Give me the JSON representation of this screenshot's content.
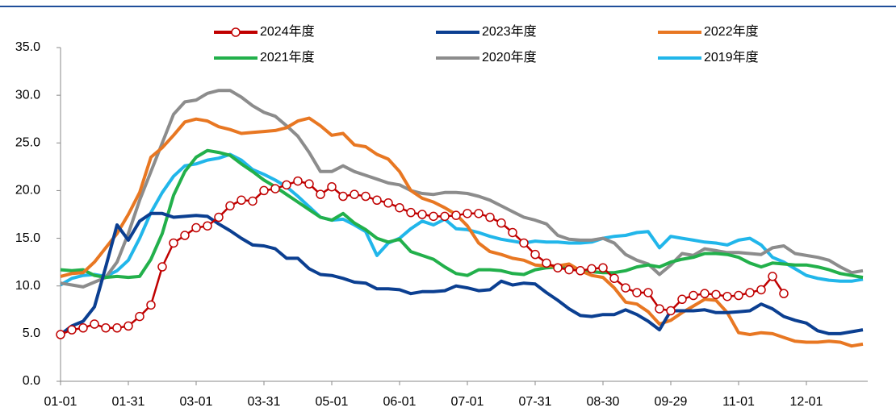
{
  "chart_data": {
    "type": "line",
    "categories": [
      "01-01",
      null,
      null,
      null,
      null,
      null,
      "01-31",
      null,
      null,
      null,
      null,
      null,
      "03-01",
      null,
      null,
      null,
      null,
      null,
      "03-31",
      null,
      null,
      null,
      null,
      null,
      "05-01",
      null,
      null,
      null,
      null,
      null,
      "06-01",
      null,
      null,
      null,
      null,
      null,
      "07-01",
      null,
      null,
      null,
      null,
      null,
      "07-31",
      null,
      null,
      null,
      null,
      null,
      "08-30",
      null,
      null,
      null,
      null,
      null,
      "09-29",
      null,
      null,
      null,
      null,
      null,
      "11-01",
      null,
      null,
      null,
      null,
      null,
      "12-01",
      null,
      null,
      null,
      null,
      null
    ],
    "ylim": [
      0,
      35
    ],
    "yticks": [
      {
        "value": 0,
        "label": "0.0"
      },
      {
        "value": 5,
        "label": "5.0"
      },
      {
        "value": 10,
        "label": "10.0"
      },
      {
        "value": 15,
        "label": "15.0"
      },
      {
        "value": 20,
        "label": "20.0"
      },
      {
        "value": 25,
        "label": "25.0"
      },
      {
        "value": 30,
        "label": "30.0"
      },
      {
        "value": 35,
        "label": "35.0"
      }
    ],
    "grid": false,
    "series": [
      {
        "name": "2024年度",
        "color": "#c00000",
        "marker": "circle",
        "values": [
          4.9,
          5.4,
          5.6,
          6.0,
          5.6,
          5.6,
          5.8,
          6.8,
          8.0,
          12.0,
          14.5,
          15.3,
          16.1,
          16.3,
          17.2,
          18.4,
          19.0,
          18.9,
          20.0,
          20.2,
          20.6,
          21.0,
          20.7,
          19.6,
          20.4,
          19.4,
          19.6,
          19.4,
          19.0,
          18.7,
          18.2,
          17.7,
          17.5,
          17.3,
          17.3,
          17.4,
          17.6,
          17.6,
          17.2,
          16.6,
          15.6,
          14.5,
          13.3,
          12.4,
          11.9,
          11.7,
          11.6,
          11.8,
          11.9,
          10.8,
          9.8,
          9.3,
          9.3,
          7.6,
          7.4,
          8.6,
          9.0,
          9.2,
          9.1,
          8.9,
          9.0,
          9.3,
          9.6,
          11.0,
          9.2,
          null,
          null,
          null,
          null,
          null,
          null,
          null
        ]
      },
      {
        "name": "2023年度",
        "color": "#0b3f91",
        "values": [
          4.9,
          5.8,
          6.3,
          7.8,
          12,
          16.4,
          14.8,
          16.8,
          17.6,
          17.6,
          17.2,
          17.3,
          17.4,
          17.3,
          16.5,
          15.8,
          15.0,
          14.3,
          14.2,
          13.9,
          12.9,
          12.9,
          11.8,
          11.2,
          11.1,
          10.8,
          10.4,
          10.3,
          9.7,
          9.7,
          9.6,
          9.2,
          9.4,
          9.4,
          9.5,
          10.0,
          9.8,
          9.5,
          9.6,
          10.5,
          10.1,
          10.3,
          10.2,
          9.3,
          8.5,
          7.6,
          6.9,
          6.8,
          7.0,
          7.0,
          7.5,
          7.0,
          6.3,
          5.4,
          7.4,
          7.4,
          7.4,
          7.5,
          7.2,
          7.2,
          7.3,
          7.4,
          8.1,
          7.6,
          6.8,
          6.4,
          6.1,
          5.3,
          5.0,
          5.0,
          5.2,
          5.4
        ]
      },
      {
        "name": "2022年度",
        "color": "#e87722",
        "values": [
          11.0,
          11.3,
          11.4,
          12.5,
          14.0,
          15.5,
          17.5,
          19.8,
          23.5,
          24.5,
          25.8,
          27.2,
          27.5,
          27.3,
          26.7,
          26.4,
          26.0,
          26.1,
          26.2,
          26.3,
          26.6,
          27.3,
          27.6,
          26.8,
          25.8,
          26.0,
          24.8,
          24.6,
          23.8,
          23.3,
          22.0,
          20.0,
          19.2,
          18.8,
          18.2,
          17.5,
          16.3,
          14.5,
          13.6,
          13.3,
          12.9,
          12.7,
          12.2,
          12.1,
          12.1,
          12.3,
          11.6,
          11.1,
          10.9,
          9.8,
          8.3,
          8.1,
          7.3,
          6.0,
          6.4,
          7.2,
          7.9,
          8.6,
          8.5,
          7.2,
          5.1,
          4.9,
          5.1,
          5.0,
          4.6,
          4.2,
          4.1,
          4.1,
          4.2,
          4.1,
          3.7,
          3.9
        ]
      },
      {
        "name": "2021年度",
        "color": "#22b04b",
        "values": [
          11.7,
          11.6,
          11.7,
          11.1,
          10.9,
          11.0,
          10.9,
          11.0,
          12.8,
          15.5,
          19.5,
          22.0,
          23.5,
          24.2,
          24.0,
          23.7,
          22.8,
          22.0,
          21.1,
          20.4,
          19.6,
          18.8,
          18.0,
          17.2,
          16.9,
          17.6,
          16.6,
          15.9,
          15.0,
          14.6,
          14.9,
          13.6,
          13.2,
          12.8,
          12.0,
          11.3,
          11.1,
          11.7,
          11.7,
          11.6,
          11.3,
          11.2,
          11.7,
          11.9,
          12.0,
          11.8,
          11.7,
          11.5,
          11.4,
          11.4,
          11.6,
          12.0,
          12.2,
          12.0,
          12.5,
          12.8,
          13.0,
          13.4,
          13.4,
          13.3,
          13.0,
          12.4,
          12.0,
          12.4,
          12.3,
          12.2,
          12.2,
          12.0,
          11.7,
          11.3,
          11.1,
          10.9
        ]
      },
      {
        "name": "2020年度",
        "color": "#8c8c8c",
        "values": [
          10.3,
          10.1,
          9.9,
          10.4,
          10.9,
          12.5,
          15.5,
          19.0,
          22.0,
          25.0,
          28.0,
          29.3,
          29.5,
          30.2,
          30.5,
          30.5,
          29.8,
          28.9,
          28.2,
          27.8,
          26.8,
          25.7,
          24.0,
          22.0,
          22.0,
          22.6,
          22.0,
          21.6,
          21.2,
          20.8,
          20.6,
          20.0,
          19.7,
          19.6,
          19.8,
          19.8,
          19.7,
          19.4,
          19.0,
          18.4,
          17.8,
          17.2,
          16.9,
          16.5,
          15.3,
          14.9,
          14.8,
          14.8,
          15.0,
          14.5,
          13.3,
          12.7,
          12.3,
          11.2,
          12.2,
          13.4,
          13.2,
          13.9,
          13.7,
          13.5,
          13.5,
          13.4,
          13.3,
          14.0,
          14.2,
          13.4,
          13.2,
          13.0,
          12.7,
          12.0,
          11.4,
          11.6
        ]
      },
      {
        "name": "2019年度",
        "color": "#21b6ea",
        "values": [
          10.1,
          10.8,
          11.1,
          11.2,
          11.0,
          11.6,
          12.7,
          15.0,
          17.7,
          19.8,
          21.5,
          22.6,
          22.8,
          23.2,
          23.4,
          23.8,
          23.2,
          22.2,
          21.7,
          21.1,
          20.4,
          19.4,
          18.3,
          17.2,
          16.9,
          17.0,
          16.4,
          15.7,
          13.2,
          14.5,
          15.0,
          16.0,
          16.8,
          16.4,
          17.0,
          16.0,
          15.9,
          15.6,
          15.2,
          14.9,
          14.7,
          14.5,
          14.7,
          14.6,
          14.6,
          14.5,
          14.5,
          14.6,
          15.0,
          15.2,
          15.3,
          15.6,
          15.7,
          14.0,
          15.2,
          15.0,
          14.8,
          14.6,
          14.5,
          14.3,
          14.8,
          15.0,
          14.3,
          13.0,
          12.5,
          11.8,
          11.1,
          10.8,
          10.6,
          10.5,
          10.5,
          10.7
        ]
      }
    ]
  }
}
